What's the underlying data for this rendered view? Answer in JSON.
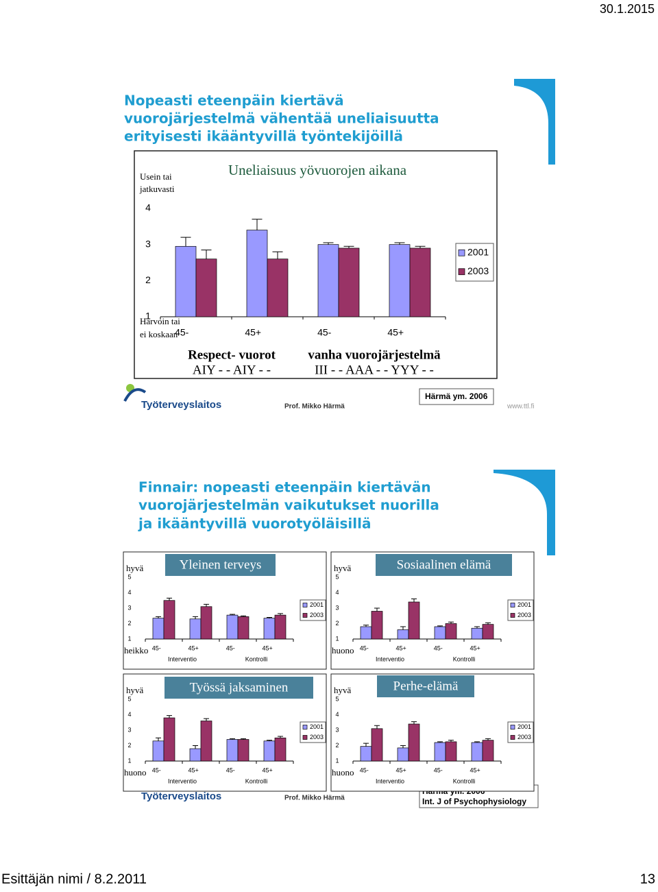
{
  "header": {
    "date": "30.1.2015"
  },
  "slides": [
    {
      "title_lines": [
        "Nopeasti eteenpäin kiertävä",
        "vuorojärjestelmä vähentää uneliaisuutta",
        "erityisesti ikääntyvillä työntekijöillä"
      ],
      "logo": "Työterveyslaitos",
      "author": "Prof. Mikko Härmä",
      "reference": [
        "Härmä ym. 2006"
      ],
      "url": "www.ttl.fi"
    },
    {
      "title_lines": [
        "Finnair: nopeasti eteenpäin kiertävän",
        "vuorojärjestelmän vaikutukset nuorilla",
        "ja ikääntyvillä vuorotyöläisillä"
      ],
      "logo": "Työterveyslaitos",
      "author": "Prof. Mikko Härmä",
      "reference": [
        "Härmä ym. 2006",
        "Int. J of Psychophysiology"
      ]
    }
  ],
  "footer": {
    "presenter": "Esittäjän nimi / 8.2.2011",
    "page": "13"
  },
  "chart_data": [
    {
      "type": "bar",
      "title": "Uneliaisuus yövuorojen aikana",
      "y_top_label": [
        "Usein tai",
        "jatkuvasti"
      ],
      "y_bottom_label": [
        "Harvoin tai",
        "ei koskaan"
      ],
      "categories": [
        "45-",
        "45+",
        "45-",
        "45+"
      ],
      "group_labels": [
        [
          "Respect- vuorot",
          "AIY - - AIY - -"
        ],
        [
          "vanha vuorojärjestelmä",
          "III - - AAA - - YYY - -"
        ]
      ],
      "series": [
        {
          "name": "2001",
          "color": "#9999ff",
          "values": [
            2.95,
            3.4,
            3.0,
            3.0
          ],
          "errors": [
            0.25,
            0.3,
            0.05,
            0.05
          ]
        },
        {
          "name": "2003",
          "color": "#993366",
          "values": [
            2.6,
            2.6,
            2.9,
            2.9
          ],
          "errors": [
            0.25,
            0.2,
            0.05,
            0.05
          ]
        }
      ],
      "ylim": [
        1,
        4
      ],
      "yticks": [
        1,
        2,
        3,
        4
      ]
    },
    {
      "type": "bar",
      "title": "Yleinen terveys",
      "y_top_label": [
        "hyvä"
      ],
      "y_bottom_label": [
        "heikko"
      ],
      "categories": [
        "45-",
        "45+",
        "45-",
        "45+"
      ],
      "group_labels": [
        [
          "Interventio"
        ],
        [
          "Kontrolli"
        ]
      ],
      "series": [
        {
          "name": "2001",
          "color": "#9999ff",
          "values": [
            2.35,
            2.3,
            2.55,
            2.35
          ],
          "errors": [
            0.1,
            0.15,
            0.05,
            0.05
          ]
        },
        {
          "name": "2003",
          "color": "#993366",
          "values": [
            3.5,
            3.1,
            2.45,
            2.55
          ],
          "errors": [
            0.15,
            0.15,
            0.05,
            0.1
          ]
        }
      ],
      "ylim": [
        1,
        5
      ],
      "yticks": [
        1,
        2,
        3,
        4,
        5
      ]
    },
    {
      "type": "bar",
      "title": "Sosiaalinen elämä",
      "y_top_label": [
        "hyvä"
      ],
      "y_bottom_label": [
        "huono"
      ],
      "categories": [
        "45-",
        "45+",
        "45-",
        "45+"
      ],
      "group_labels": [
        [
          "Interventio"
        ],
        [
          "Kontrolli"
        ]
      ],
      "series": [
        {
          "name": "2001",
          "color": "#9999ff",
          "values": [
            1.8,
            1.6,
            1.8,
            1.7
          ],
          "errors": [
            0.1,
            0.2,
            0.05,
            0.1
          ]
        },
        {
          "name": "2003",
          "color": "#993366",
          "values": [
            2.8,
            3.4,
            2.0,
            1.95
          ],
          "errors": [
            0.2,
            0.2,
            0.1,
            0.1
          ]
        }
      ],
      "ylim": [
        1,
        5
      ],
      "yticks": [
        1,
        2,
        3,
        4,
        5
      ]
    },
    {
      "type": "bar",
      "title": "Työssä jaksaminen",
      "y_top_label": [
        "hyvä"
      ],
      "y_bottom_label": [
        "huono"
      ],
      "categories": [
        "45-",
        "45+",
        "45-",
        "45+"
      ],
      "group_labels": [
        [
          "Interventio"
        ],
        [
          "Kontrolli"
        ]
      ],
      "series": [
        {
          "name": "2001",
          "color": "#9999ff",
          "values": [
            2.3,
            1.8,
            2.4,
            2.3
          ],
          "errors": [
            0.2,
            0.2,
            0.05,
            0.05
          ]
        },
        {
          "name": "2003",
          "color": "#993366",
          "values": [
            3.8,
            3.6,
            2.4,
            2.5
          ],
          "errors": [
            0.15,
            0.15,
            0.05,
            0.1
          ]
        }
      ],
      "ylim": [
        1,
        5
      ],
      "yticks": [
        1,
        2,
        3,
        4,
        5
      ]
    },
    {
      "type": "bar",
      "title": "Perhe-elämä",
      "y_top_label": [
        "hyvä"
      ],
      "y_bottom_label": [
        "huono"
      ],
      "categories": [
        "45-",
        "45+",
        "45-",
        "45+"
      ],
      "group_labels": [
        [
          "Interventio"
        ],
        [
          "Kontrolli"
        ]
      ],
      "series": [
        {
          "name": "2001",
          "color": "#9999ff",
          "values": [
            1.95,
            1.85,
            2.2,
            2.2
          ],
          "errors": [
            0.2,
            0.15,
            0.05,
            0.05
          ]
        },
        {
          "name": "2003",
          "color": "#993366",
          "values": [
            3.1,
            3.4,
            2.25,
            2.35
          ],
          "errors": [
            0.2,
            0.15,
            0.1,
            0.1
          ]
        }
      ],
      "ylim": [
        1,
        5
      ],
      "yticks": [
        1,
        2,
        3,
        4,
        5
      ]
    }
  ]
}
